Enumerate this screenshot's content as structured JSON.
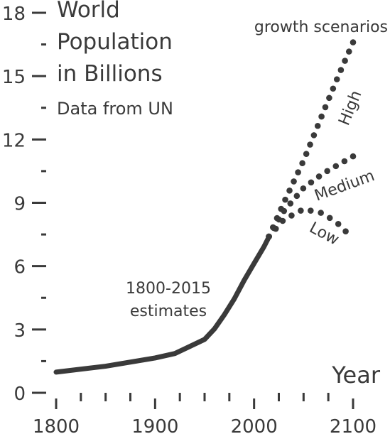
{
  "title": {
    "line1": "World",
    "line2": "Population",
    "line3": "in Billions",
    "source": "Data from UN"
  },
  "annotations": {
    "estimates_line1": "1800-2015",
    "estimates_line2": "estimates",
    "scenarios": "growth scenarios"
  },
  "chart_data": {
    "type": "line",
    "xlabel": "Year",
    "ylabel": "",
    "xlim": [
      1800,
      2100
    ],
    "ylim": [
      0,
      18
    ],
    "x_ticks": [
      1800,
      1900,
      2000,
      2100
    ],
    "y_ticks": [
      0,
      3,
      6,
      9,
      12,
      15,
      18
    ],
    "grid": false,
    "color": "#3a3a3a",
    "series": [
      {
        "style": "solid",
        "x": [
          1800,
          1850,
          1900,
          1920,
          1950,
          1960,
          1970,
          1980,
          1990,
          2000,
          2010,
          2015
        ],
        "values": [
          0.98,
          1.26,
          1.65,
          1.86,
          2.53,
          3.03,
          3.7,
          4.45,
          5.33,
          6.13,
          6.92,
          7.38
        ]
      },
      {
        "name": "High",
        "style": "dotted",
        "x": [
          2015,
          2030,
          2050,
          2070,
          2085,
          2100
        ],
        "values": [
          7.4,
          9.0,
          11.0,
          13.3,
          15.0,
          16.6
        ]
      },
      {
        "name": "Medium",
        "style": "dotted",
        "x": [
          2015,
          2030,
          2050,
          2070,
          2085,
          2100
        ],
        "values": [
          7.4,
          8.6,
          9.7,
          10.4,
          10.8,
          11.2
        ]
      },
      {
        "name": "Low",
        "style": "dotted",
        "x": [
          2015,
          2030,
          2050,
          2070,
          2085,
          2100
        ],
        "values": [
          7.4,
          8.2,
          8.7,
          8.5,
          8.0,
          7.3
        ]
      }
    ]
  }
}
